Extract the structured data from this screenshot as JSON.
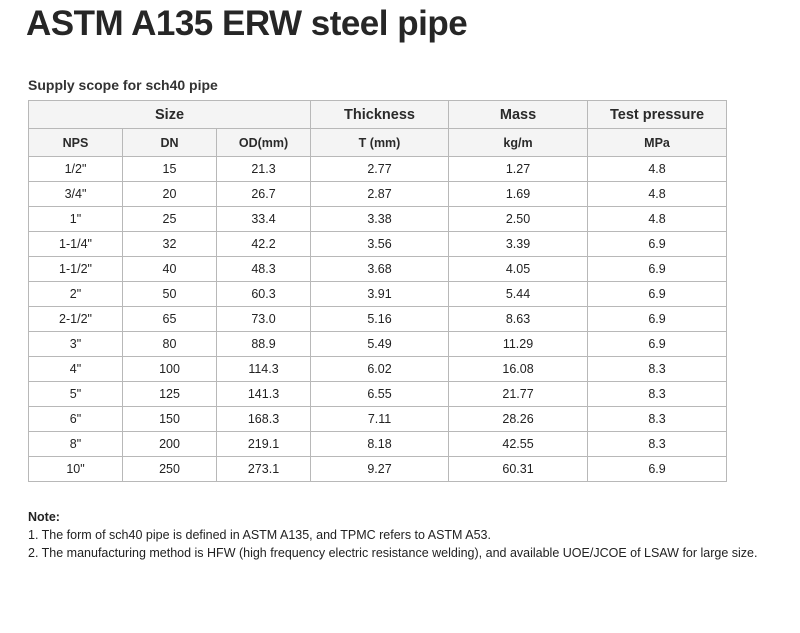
{
  "title": "ASTM A135 ERW steel pipe",
  "table_caption": "Supply scope for sch40 pipe",
  "table": {
    "group_headers": {
      "size": "Size",
      "thickness": "Thickness",
      "mass": "Mass",
      "test_pressure": "Test pressure"
    },
    "unit_headers": {
      "nps": "NPS",
      "dn": "DN",
      "od": "OD(mm)",
      "t": "T (mm)",
      "mass_unit": "kg/m",
      "pressure_unit": "MPa"
    },
    "rows": [
      [
        "1/2\"",
        "15",
        "21.3",
        "2.77",
        "1.27",
        "4.8"
      ],
      [
        "3/4\"",
        "20",
        "26.7",
        "2.87",
        "1.69",
        "4.8"
      ],
      [
        "1\"",
        "25",
        "33.4",
        "3.38",
        "2.50",
        "4.8"
      ],
      [
        "1-1/4\"",
        "32",
        "42.2",
        "3.56",
        "3.39",
        "6.9"
      ],
      [
        "1-1/2\"",
        "40",
        "48.3",
        "3.68",
        "4.05",
        "6.9"
      ],
      [
        "2\"",
        "50",
        "60.3",
        "3.91",
        "5.44",
        "6.9"
      ],
      [
        "2-1/2\"",
        "65",
        "73.0",
        "5.16",
        "8.63",
        "6.9"
      ],
      [
        "3\"",
        "80",
        "88.9",
        "5.49",
        "11.29",
        "6.9"
      ],
      [
        "4\"",
        "100",
        "114.3",
        "6.02",
        "16.08",
        "8.3"
      ],
      [
        "5\"",
        "125",
        "141.3",
        "6.55",
        "21.77",
        "8.3"
      ],
      [
        "6\"",
        "150",
        "168.3",
        "7.11",
        "28.26",
        "8.3"
      ],
      [
        "8\"",
        "200",
        "219.1",
        "8.18",
        "42.55",
        "8.3"
      ],
      [
        "10\"",
        "250",
        "273.1",
        "9.27",
        "60.31",
        "6.9"
      ]
    ]
  },
  "notes": {
    "heading": "Note:",
    "items": [
      "1. The form of sch40 pipe is defined in ASTM A135, and TPMC refers to ASTM A53.",
      "2. The manufacturing method is HFW (high frequency electric resistance welding), and available UOE/JCOE of LSAW for large size."
    ]
  }
}
